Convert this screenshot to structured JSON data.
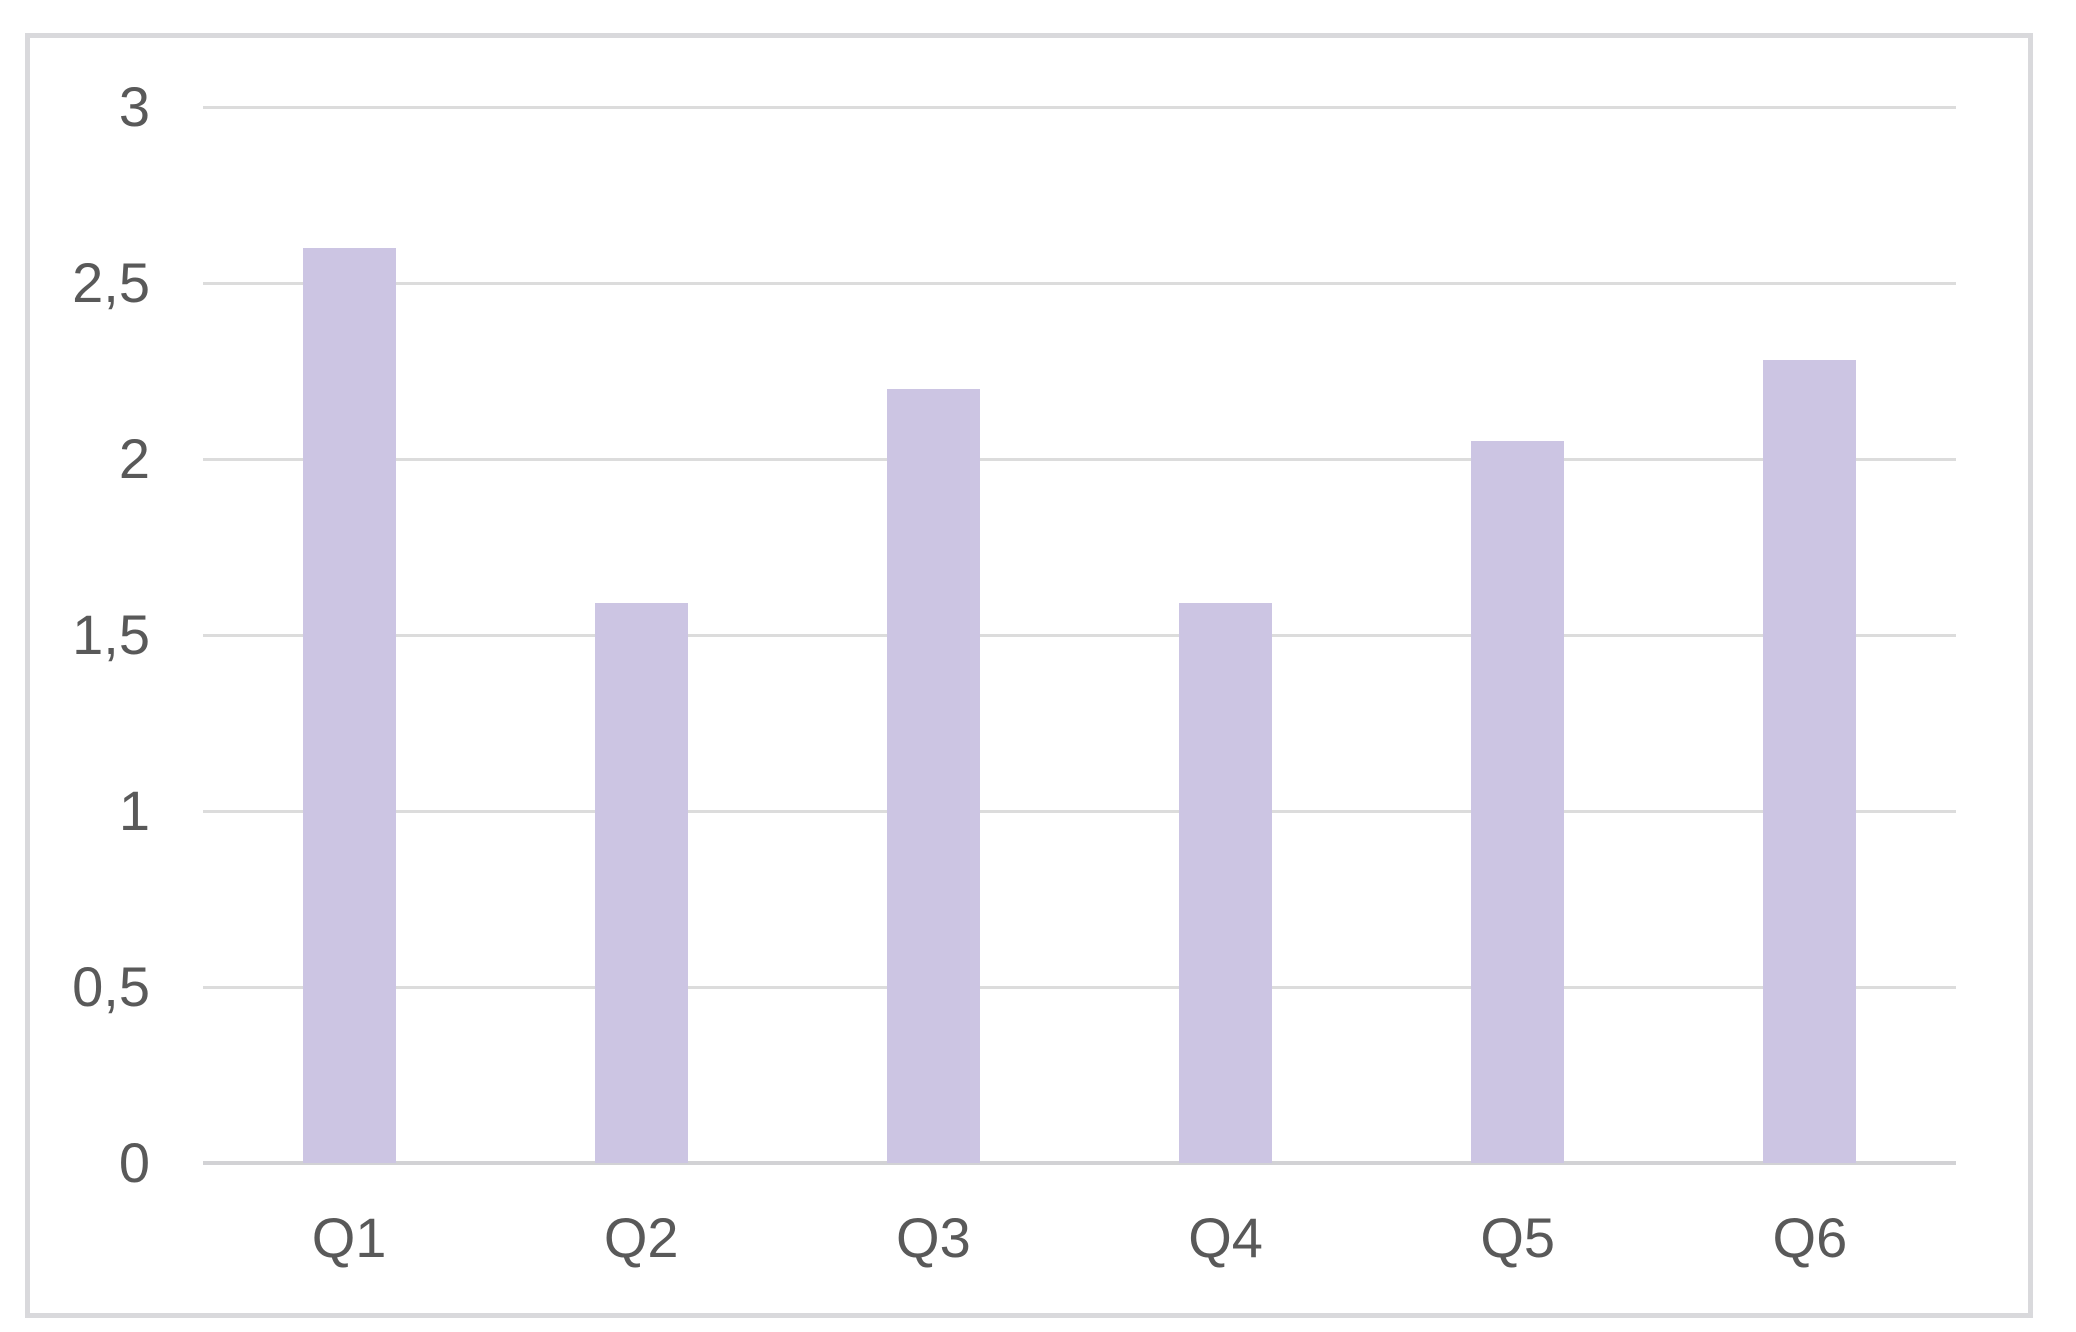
{
  "chart_data": {
    "type": "bar",
    "title": "",
    "xlabel": "",
    "ylabel": "",
    "categories": [
      "Q1",
      "Q2",
      "Q3",
      "Q4",
      "Q5",
      "Q6"
    ],
    "values": [
      2.6,
      1.59,
      2.2,
      1.59,
      2.05,
      2.28
    ],
    "series": [
      {
        "name": "",
        "values": [
          2.6,
          1.59,
          2.2,
          1.59,
          2.05,
          2.28
        ]
      }
    ],
    "ylim": [
      0,
      3
    ],
    "y_ticks": [
      3,
      2.5,
      2,
      1.5,
      1,
      0.5,
      0
    ],
    "y_tick_labels": [
      "3",
      "2,5",
      "2",
      "1,5",
      "1",
      "0,5",
      "0"
    ],
    "grid": "horizontal-major",
    "legend": "none",
    "bar_width_fraction": 0.318,
    "colors": {
      "bar_fill": "#ccc5e3",
      "gridline": "#dcdcdc",
      "axis_line": "#d2d2d5",
      "tick_label": "#595959",
      "chart_border": "#d9d9dc",
      "background": "#ffffff"
    }
  }
}
